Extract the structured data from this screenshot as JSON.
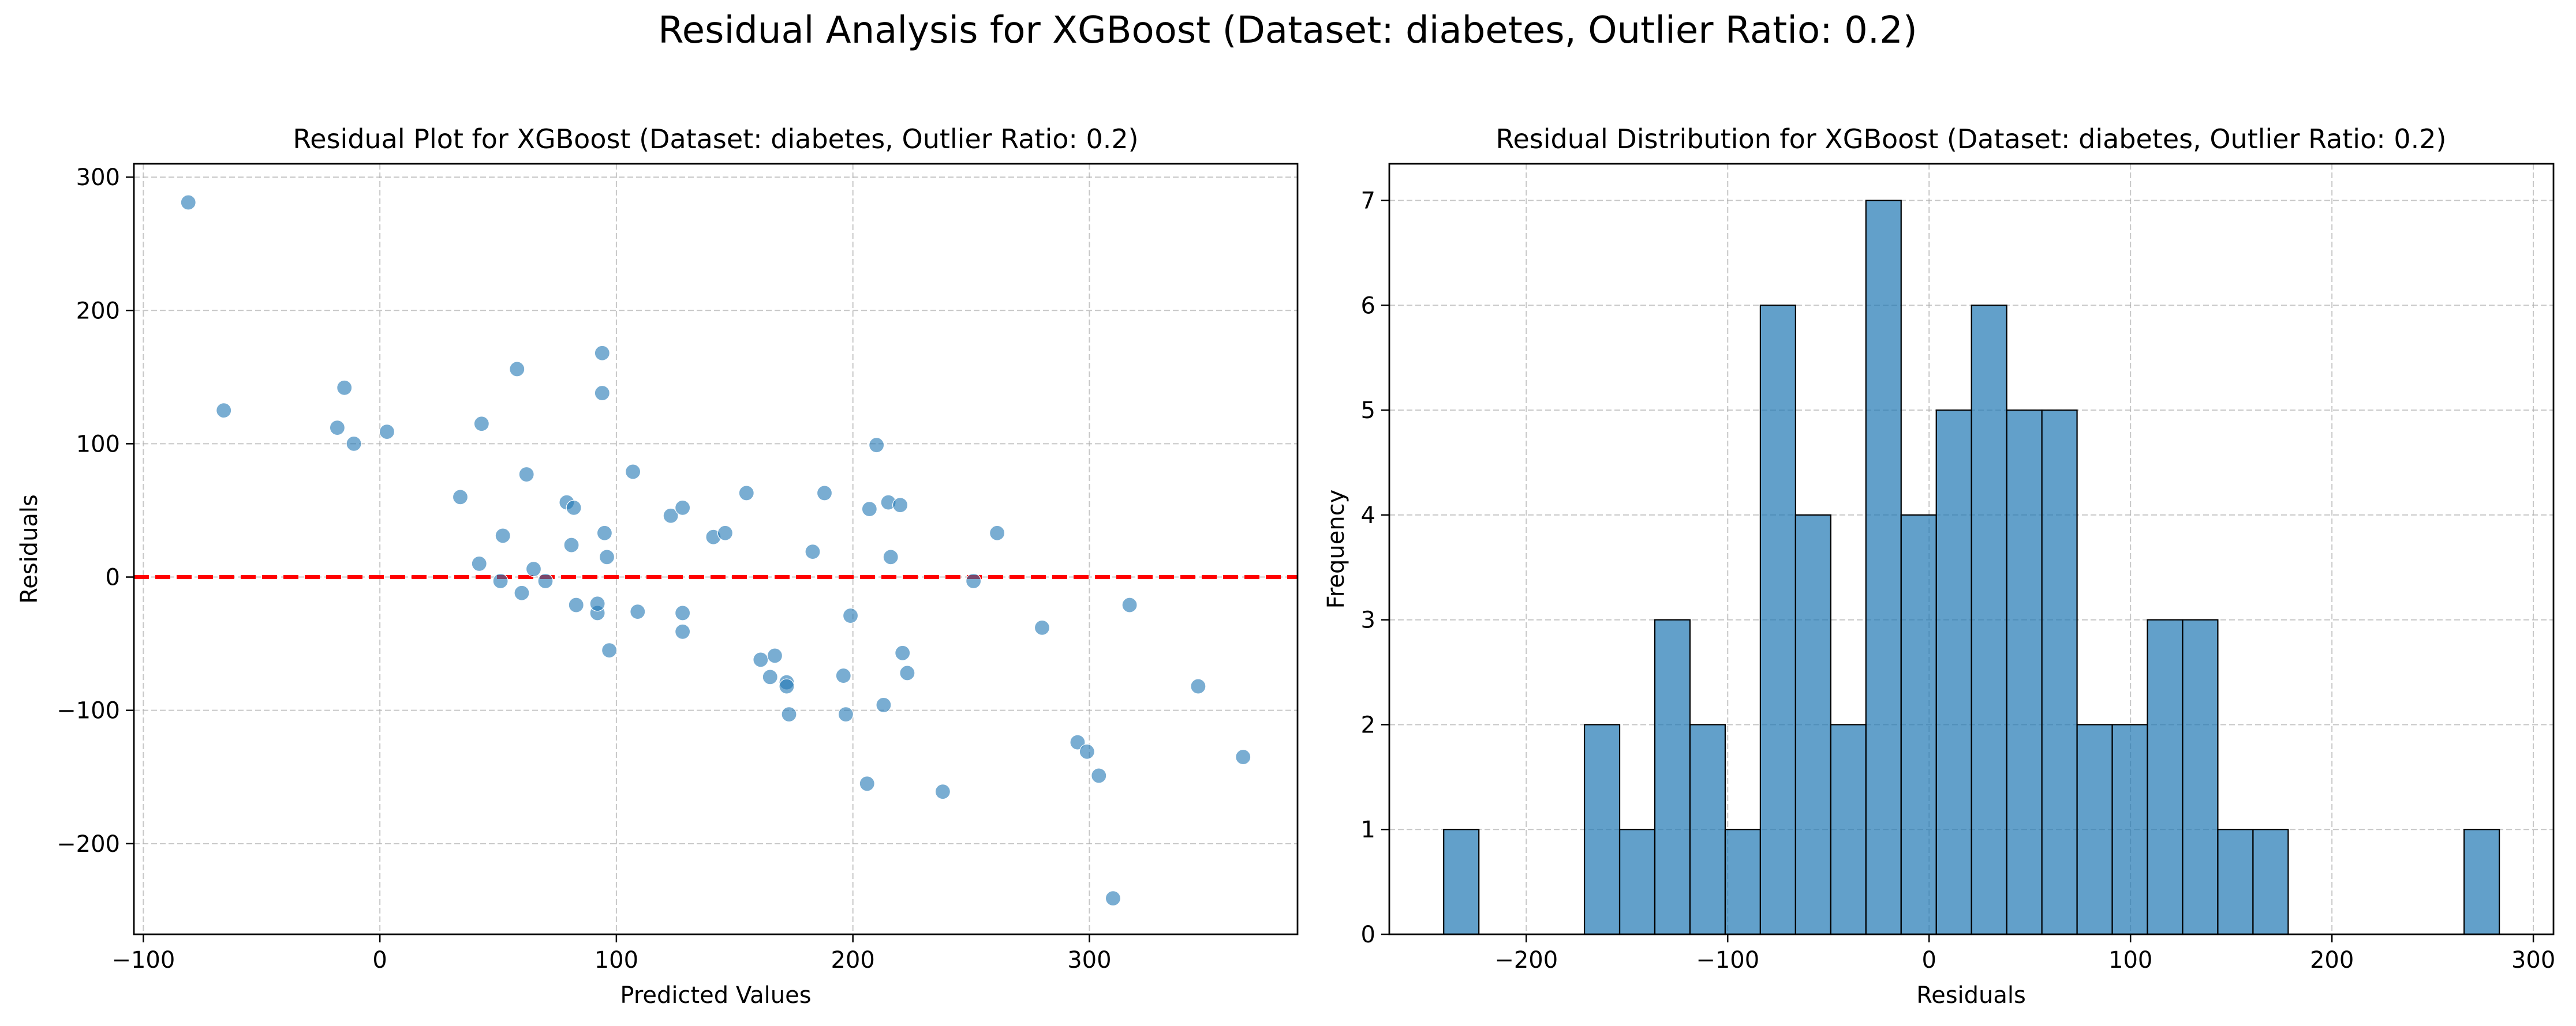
{
  "figure": {
    "suptitle": "Residual Analysis for XGBoost (Dataset: diabetes, Outlier Ratio: 0.2)"
  },
  "chart_data": [
    {
      "type": "scatter",
      "title": "Residual Plot for XGBoost (Dataset: diabetes, Outlier Ratio: 0.2)",
      "xlabel": "Predicted Values",
      "ylabel": "Residuals",
      "xlim": [
        -104,
        388
      ],
      "ylim": [
        -268,
        310
      ],
      "xticks": [
        -100,
        0,
        100,
        200,
        300
      ],
      "yticks": [
        -200,
        -100,
        0,
        100,
        200,
        300
      ],
      "xtick_labels": [
        "−100",
        "0",
        "100",
        "200",
        "300"
      ],
      "ytick_labels": [
        "−200",
        "−100",
        "0",
        "100",
        "200",
        "300"
      ],
      "grid": true,
      "point_color": "#1f77b4",
      "reference_line": {
        "y": 0,
        "color": "#ff0000",
        "style": "dashed"
      },
      "points": [
        {
          "x": -81,
          "y": 281
        },
        {
          "x": -66,
          "y": 125
        },
        {
          "x": -18,
          "y": 112
        },
        {
          "x": -15,
          "y": 142
        },
        {
          "x": -11,
          "y": 100
        },
        {
          "x": 3,
          "y": 109
        },
        {
          "x": 34,
          "y": 60
        },
        {
          "x": 42,
          "y": 10
        },
        {
          "x": 43,
          "y": 115
        },
        {
          "x": 51,
          "y": -3
        },
        {
          "x": 52,
          "y": 31
        },
        {
          "x": 58,
          "y": 156
        },
        {
          "x": 60,
          "y": -12
        },
        {
          "x": 62,
          "y": 77
        },
        {
          "x": 65,
          "y": 6
        },
        {
          "x": 70,
          "y": -3
        },
        {
          "x": 79,
          "y": 56
        },
        {
          "x": 81,
          "y": 24
        },
        {
          "x": 82,
          "y": 52
        },
        {
          "x": 83,
          "y": -21
        },
        {
          "x": 92,
          "y": -27
        },
        {
          "x": 92,
          "y": -20
        },
        {
          "x": 94,
          "y": 168
        },
        {
          "x": 94,
          "y": 138
        },
        {
          "x": 95,
          "y": 33
        },
        {
          "x": 96,
          "y": 15
        },
        {
          "x": 97,
          "y": -55
        },
        {
          "x": 107,
          "y": 79
        },
        {
          "x": 109,
          "y": -26
        },
        {
          "x": 123,
          "y": 46
        },
        {
          "x": 128,
          "y": 52
        },
        {
          "x": 128,
          "y": -27
        },
        {
          "x": 128,
          "y": -41
        },
        {
          "x": 141,
          "y": 30
        },
        {
          "x": 146,
          "y": 33
        },
        {
          "x": 155,
          "y": 63
        },
        {
          "x": 161,
          "y": -62
        },
        {
          "x": 165,
          "y": -75
        },
        {
          "x": 167,
          "y": -59
        },
        {
          "x": 172,
          "y": -79
        },
        {
          "x": 172,
          "y": -82
        },
        {
          "x": 173,
          "y": -103
        },
        {
          "x": 183,
          "y": 19
        },
        {
          "x": 188,
          "y": 63
        },
        {
          "x": 196,
          "y": -74
        },
        {
          "x": 197,
          "y": -103
        },
        {
          "x": 199,
          "y": -29
        },
        {
          "x": 206,
          "y": -155
        },
        {
          "x": 207,
          "y": 51
        },
        {
          "x": 210,
          "y": 99
        },
        {
          "x": 213,
          "y": -96
        },
        {
          "x": 215,
          "y": 56
        },
        {
          "x": 216,
          "y": 15
        },
        {
          "x": 220,
          "y": 54
        },
        {
          "x": 221,
          "y": -57
        },
        {
          "x": 223,
          "y": -72
        },
        {
          "x": 238,
          "y": -161
        },
        {
          "x": 251,
          "y": -3
        },
        {
          "x": 261,
          "y": 33
        },
        {
          "x": 280,
          "y": -38
        },
        {
          "x": 295,
          "y": -124
        },
        {
          "x": 299,
          "y": -131
        },
        {
          "x": 304,
          "y": -149
        },
        {
          "x": 310,
          "y": -241
        },
        {
          "x": 317,
          "y": -21
        },
        {
          "x": 346,
          "y": -82
        },
        {
          "x": 365,
          "y": -135
        }
      ]
    },
    {
      "type": "bar",
      "title": "Residual Distribution for XGBoost (Dataset: diabetes, Outlier Ratio: 0.2)",
      "xlabel": "Residuals",
      "ylabel": "Frequency",
      "xlim": [
        -268,
        310
      ],
      "ylim": [
        0,
        7.35
      ],
      "xticks": [
        -200,
        -100,
        0,
        100,
        200,
        300
      ],
      "yticks": [
        0,
        1,
        2,
        3,
        4,
        5,
        6,
        7
      ],
      "xtick_labels": [
        "−200",
        "−100",
        "0",
        "100",
        "200",
        "300"
      ],
      "ytick_labels": [
        "0",
        "1",
        "2",
        "3",
        "4",
        "5",
        "6",
        "7"
      ],
      "grid": true,
      "bar_color": "#1f77b4",
      "bin_start": -241,
      "bin_width": 17.47,
      "counts": [
        1,
        0,
        0,
        0,
        2,
        1,
        3,
        2,
        1,
        6,
        4,
        2,
        7,
        4,
        5,
        6,
        5,
        5,
        2,
        2,
        3,
        3,
        1,
        1,
        0,
        0,
        0,
        0,
        0,
        1
      ]
    }
  ]
}
